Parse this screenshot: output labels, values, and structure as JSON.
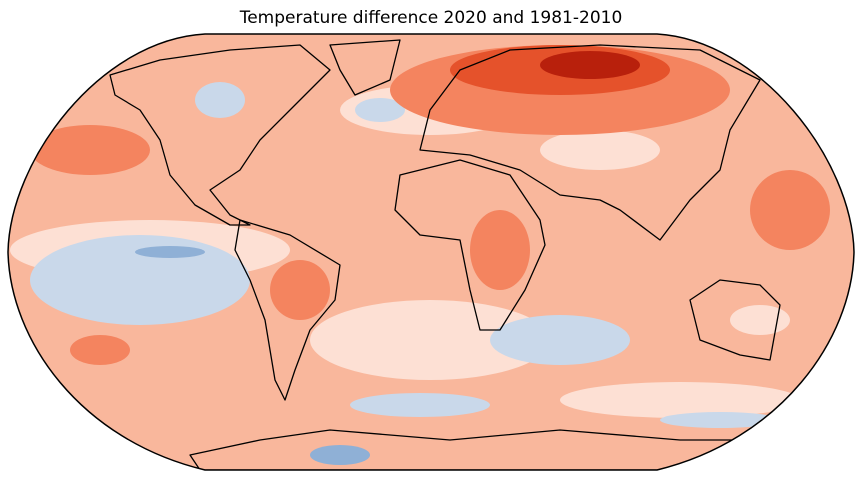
{
  "title": "Temperature difference 2020 and 1981-2010"
}
